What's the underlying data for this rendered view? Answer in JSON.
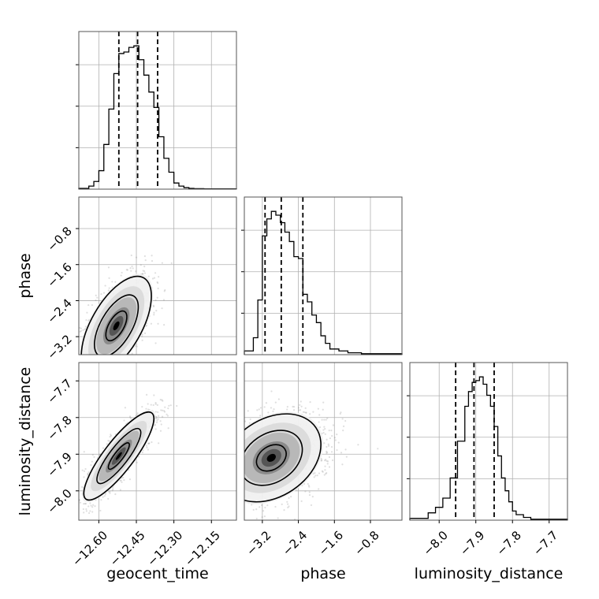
{
  "chart_data": {
    "type": "corner",
    "parameters": [
      "geocent_time",
      "phase",
      "luminosity_distance"
    ],
    "ranges": {
      "geocent_time": [
        -12.68,
        -12.05
      ],
      "phase": [
        -3.6,
        -0.1
      ],
      "luminosity_distance": [
        -8.08,
        -7.65
      ]
    },
    "ticks": {
      "geocent_time": [
        -12.6,
        -12.45,
        -12.3,
        -12.15
      ],
      "phase": [
        -3.2,
        -2.4,
        -1.6,
        -0.8
      ],
      "luminosity_distance": [
        -8.0,
        -7.9,
        -7.8,
        -7.7
      ]
    },
    "tick_labels": {
      "geocent_time": [
        "−12.60",
        "−12.45",
        "−12.30",
        "−12.15"
      ],
      "phase": [
        "−3.2",
        "−2.4",
        "−1.6",
        "−0.8"
      ],
      "luminosity_distance": [
        "−8.0",
        "−7.9",
        "−7.8",
        "−7.7"
      ]
    },
    "axis_labels": {
      "geocent_time": "geocent_time",
      "phase": "phase",
      "luminosity_distance": "luminosity_distance"
    },
    "quantiles": {
      "geocent_time": [
        -12.52,
        -12.445,
        -12.365
      ],
      "phase": [
        -3.14,
        -2.78,
        -2.3
      ],
      "luminosity_distance": [
        -7.955,
        -7.905,
        -7.85
      ]
    },
    "histograms": {
      "geocent_time": {
        "edges": [
          -12.68,
          -12.64,
          -12.62,
          -12.6,
          -12.58,
          -12.56,
          -12.54,
          -12.52,
          -12.5,
          -12.48,
          -12.46,
          -12.44,
          -12.42,
          -12.4,
          -12.38,
          -12.36,
          -12.34,
          -12.32,
          -12.3,
          -12.28,
          -12.26,
          -12.24,
          -12.22,
          -12.2,
          -12.18,
          -12.05
        ],
        "counts": [
          0.5,
          2,
          5,
          12,
          29,
          52,
          75,
          88,
          89,
          92,
          93,
          84,
          74,
          63,
          53,
          34,
          20,
          11,
          4,
          2,
          1,
          0.5,
          0.3,
          0.3,
          0.2
        ]
      },
      "phase": {
        "edges": [
          -3.6,
          -3.4,
          -3.3,
          -3.2,
          -3.1,
          -3.0,
          -2.9,
          -2.8,
          -2.7,
          -2.6,
          -2.5,
          -2.4,
          -2.3,
          -2.2,
          -2.1,
          -2.0,
          -1.9,
          -1.8,
          -1.7,
          -1.5,
          -1.3,
          -1.0,
          -0.1
        ],
        "counts": [
          2,
          9,
          29,
          63,
          72,
          76,
          74,
          70,
          65,
          60,
          52,
          51,
          32,
          28,
          21,
          17,
          10,
          6,
          3,
          2,
          1,
          0.5
        ]
      },
      "luminosity_distance": {
        "edges": [
          -8.08,
          -8.03,
          -8.01,
          -7.99,
          -7.97,
          -7.95,
          -7.93,
          -7.92,
          -7.91,
          -7.9,
          -7.89,
          -7.88,
          -7.87,
          -7.86,
          -7.85,
          -7.84,
          -7.83,
          -7.82,
          -7.81,
          -7.8,
          -7.79,
          -7.77,
          -7.75,
          -7.65
        ],
        "counts": [
          1,
          4,
          7,
          12,
          23,
          43,
          62,
          70,
          75,
          76,
          78,
          74,
          68,
          62,
          51,
          35,
          23,
          16,
          10,
          5,
          3,
          1.5,
          0.5
        ]
      }
    },
    "pairs": [
      {
        "x": "geocent_time",
        "y": "phase",
        "center": [
          -12.53,
          -2.96
        ],
        "sigma": [
          0.07,
          0.55
        ],
        "rho": 0.6
      },
      {
        "x": "geocent_time",
        "y": "luminosity_distance",
        "center": [
          -12.52,
          -7.905
        ],
        "sigma": [
          0.07,
          0.06
        ],
        "rho": 0.85
      },
      {
        "x": "phase",
        "y": "luminosity_distance",
        "center": [
          -3.0,
          -7.91
        ],
        "sigma": [
          0.55,
          0.06
        ],
        "rho": 0.3
      }
    ],
    "density_colors": [
      "#ffffff",
      "#f0f0f0",
      "#dcdcdc",
      "#b8b8b8",
      "#8a8a8a",
      "#555555",
      "#222222",
      "#000000"
    ],
    "point_color": "#808080"
  }
}
